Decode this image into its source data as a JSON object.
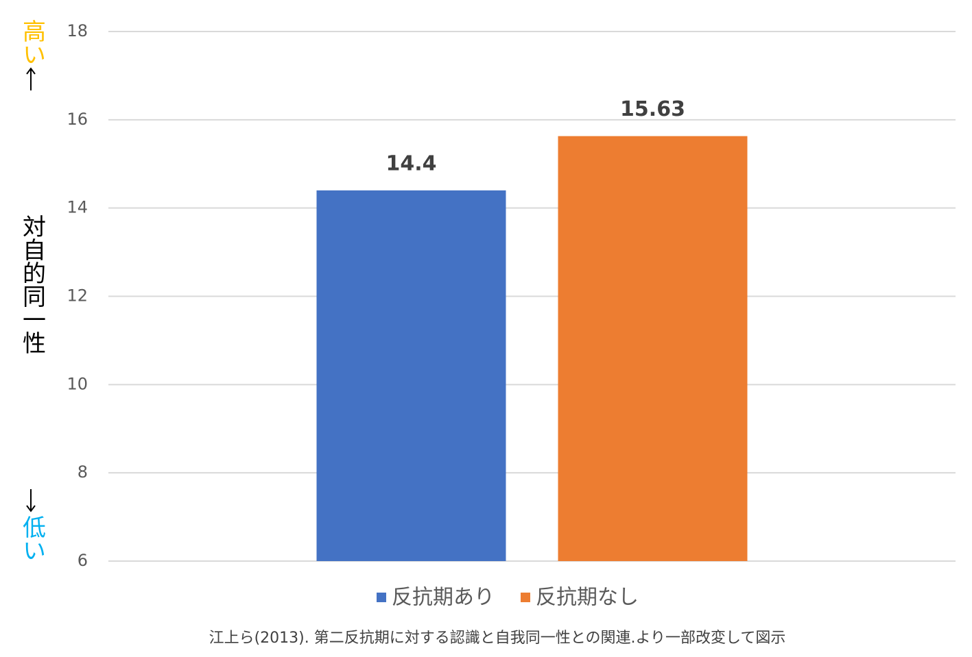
{
  "chart_data": {
    "type": "bar",
    "categories": [
      null
    ],
    "series": [
      {
        "name": "反抗期あり",
        "color": "#4472c4",
        "values": [
          14.4
        ]
      },
      {
        "name": "反抗期なし",
        "color": "#ed7d31",
        "values": [
          15.63
        ]
      }
    ],
    "ylim": [
      6,
      18
    ],
    "yticks": [
      6,
      8,
      10,
      12,
      14,
      16,
      18
    ],
    "grid": true,
    "y_label": "対自的同一性",
    "annotations": [
      {
        "text": "高い",
        "color": "#ffc000"
      },
      {
        "text": "低い",
        "color": "#00b0f0"
      }
    ],
    "legend": "bottom",
    "source": "江上ら(2013). 第二反抗期に対する認識と自我同一性との関連.より一部改変して図示"
  }
}
